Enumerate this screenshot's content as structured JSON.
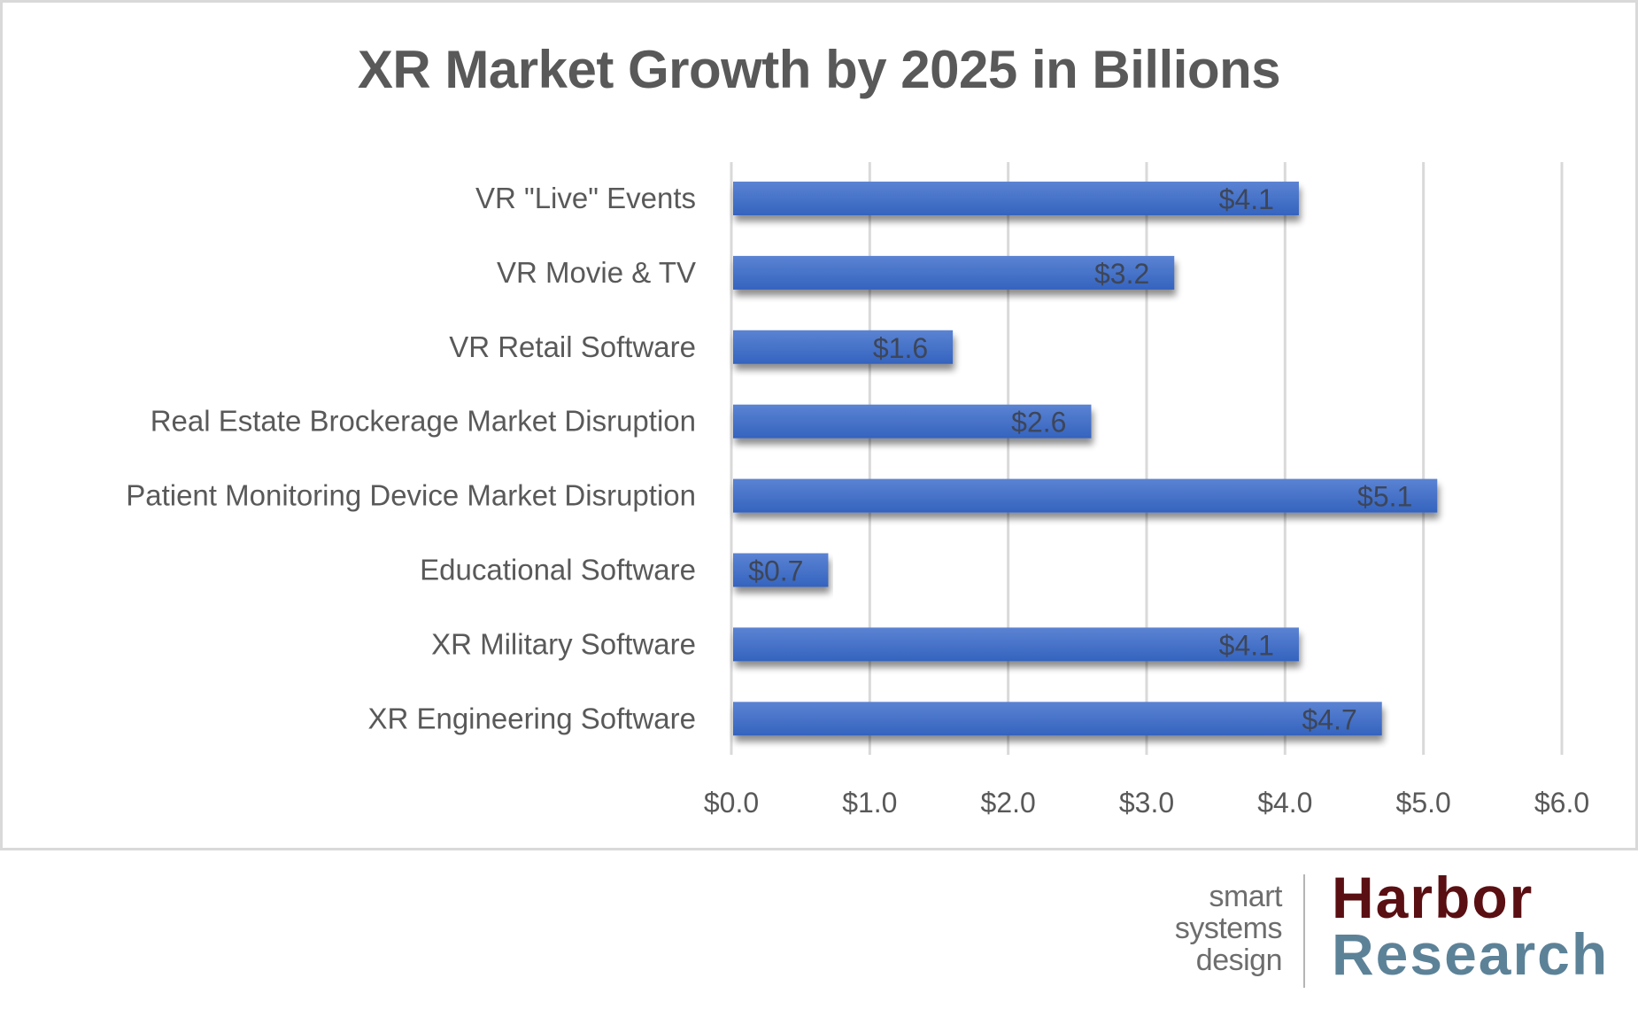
{
  "chart_data": {
    "type": "bar",
    "orientation": "horizontal",
    "title": "XR Market Growth by 2025 in Billions",
    "xlabel": "",
    "ylabel": "",
    "categories": [
      "VR \"Live\" Events",
      "VR Movie & TV",
      "VR Retail Software",
      "Real Estate Brockerage Market Disruption",
      "Patient Monitoring Device Market Disruption",
      "Educational Software",
      "XR Military Software",
      "XR Engineering Software"
    ],
    "values": [
      4.1,
      3.2,
      1.6,
      2.6,
      5.1,
      0.7,
      4.1,
      4.7
    ],
    "data_labels": [
      "$4.1",
      "$3.2",
      "$1.6",
      "$2.6",
      "$5.1",
      "$0.7",
      "$4.1",
      "$4.7"
    ],
    "xlim": [
      0,
      6
    ],
    "x_ticks": [
      0,
      1,
      2,
      3,
      4,
      5,
      6
    ],
    "x_tick_labels": [
      "$0.0",
      "$1.0",
      "$2.0",
      "$3.0",
      "$4.0",
      "$5.0",
      "$6.0"
    ],
    "grid": "vertical",
    "legend": "none",
    "colors": {
      "bar_top": "#5b83d3",
      "bar_bottom": "#3463be",
      "gridline": "#d9d9d9",
      "text": "#595959",
      "value_label": "#3d4659"
    }
  },
  "logo": {
    "tagline_lines": [
      "smart",
      "systems",
      "design"
    ],
    "brand_line1": "Harbor",
    "brand_line2": "Research",
    "brand_color1": "#5a0f12",
    "brand_color2": "#5c8298"
  }
}
